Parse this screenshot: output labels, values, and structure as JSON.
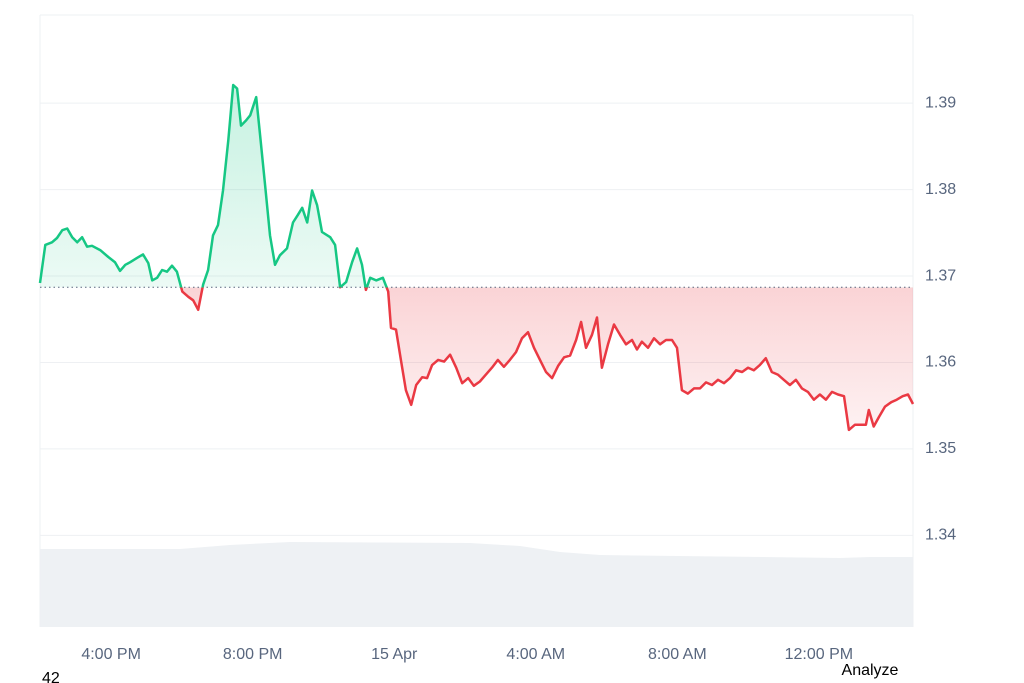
{
  "chart_data": {
    "type": "line",
    "x": [
      13.99,
      14.14,
      14.33,
      14.47,
      14.62,
      14.76,
      14.9,
      15.04,
      15.18,
      15.32,
      15.46,
      15.69,
      15.92,
      16.11,
      16.25,
      16.4,
      16.54,
      16.73,
      16.9,
      17.05,
      17.16,
      17.3,
      17.44,
      17.58,
      17.72,
      17.86,
      18.01,
      18.18,
      18.32,
      18.46,
      18.6,
      18.74,
      18.88,
      19.02,
      19.16,
      19.31,
      19.45,
      19.56,
      19.67,
      19.81,
      19.93,
      20.1,
      20.21,
      20.35,
      20.49,
      20.63,
      20.77,
      20.97,
      21.14,
      21.28,
      21.4,
      21.54,
      21.68,
      21.82,
      21.96,
      22.19,
      22.33,
      22.47,
      22.64,
      22.81,
      22.95,
      23.09,
      23.2,
      23.32,
      23.49,
      23.68,
      23.83,
      23.91,
      24.05,
      24.19,
      24.33,
      24.48,
      24.62,
      24.79,
      24.93,
      25.07,
      25.24,
      25.41,
      25.58,
      25.75,
      25.92,
      26.09,
      26.25,
      26.42,
      26.59,
      26.76,
      26.93,
      27.1,
      27.27,
      27.44,
      27.61,
      27.78,
      27.95,
      28.12,
      28.29,
      28.46,
      28.63,
      28.8,
      28.97,
      29.14,
      29.28,
      29.42,
      29.59,
      29.73,
      29.87,
      30.04,
      30.21,
      30.38,
      30.55,
      30.72,
      30.86,
      31.0,
      31.17,
      31.34,
      31.51,
      31.68,
      31.85,
      31.99,
      32.13,
      32.3,
      32.47,
      32.64,
      32.81,
      32.98,
      33.15,
      33.32,
      33.49,
      33.66,
      33.83,
      34.0,
      34.16,
      34.33,
      34.5,
      34.67,
      34.84,
      35.01,
      35.18,
      35.35,
      35.52,
      35.69,
      35.86,
      36.03,
      36.2,
      36.37,
      36.54,
      36.71,
      36.85,
      37.02,
      37.19,
      37.33,
      37.41,
      37.55,
      37.7,
      37.87,
      38.04,
      38.2,
      38.37,
      38.52,
      38.66
    ],
    "values": [
      1.3692,
      1.3736,
      1.3739,
      1.3744,
      1.3753,
      1.3755,
      1.3745,
      1.3739,
      1.3745,
      1.3734,
      1.3735,
      1.373,
      1.3722,
      1.3716,
      1.3706,
      1.3713,
      1.3716,
      1.3721,
      1.3725,
      1.3715,
      1.3695,
      1.3698,
      1.3707,
      1.3705,
      1.3712,
      1.3705,
      1.3682,
      1.3676,
      1.3672,
      1.3661,
      1.369,
      1.3707,
      1.3747,
      1.3759,
      1.3799,
      1.3857,
      1.3921,
      1.3917,
      1.3874,
      1.388,
      1.3886,
      1.3907,
      1.3863,
      1.3805,
      1.3747,
      1.3713,
      1.3724,
      1.3732,
      1.3762,
      1.3771,
      1.3779,
      1.3762,
      1.3799,
      1.3782,
      1.3751,
      1.3745,
      1.3736,
      1.3687,
      1.3693,
      1.3716,
      1.3732,
      1.3713,
      1.3684,
      1.3698,
      1.3695,
      1.3698,
      1.3682,
      1.364,
      1.3638,
      1.3603,
      1.3568,
      1.3551,
      1.3574,
      1.3583,
      1.3582,
      1.3597,
      1.3603,
      1.3601,
      1.3609,
      1.3594,
      1.3576,
      1.3582,
      1.3573,
      1.3578,
      1.3586,
      1.3594,
      1.3603,
      1.3595,
      1.3603,
      1.3612,
      1.3628,
      1.3635,
      1.3617,
      1.3603,
      1.3589,
      1.3582,
      1.3596,
      1.3606,
      1.3608,
      1.3626,
      1.3647,
      1.3617,
      1.3632,
      1.3652,
      1.3594,
      1.3621,
      1.3644,
      1.3632,
      1.3621,
      1.3626,
      1.3615,
      1.3624,
      1.3617,
      1.3628,
      1.3621,
      1.3626,
      1.3626,
      1.3617,
      1.3568,
      1.3564,
      1.357,
      1.357,
      1.3577,
      1.3574,
      1.358,
      1.3576,
      1.3582,
      1.3591,
      1.3589,
      1.3594,
      1.3591,
      1.3597,
      1.3605,
      1.3589,
      1.3586,
      1.358,
      1.3574,
      1.358,
      1.357,
      1.3566,
      1.3557,
      1.3563,
      1.3557,
      1.3566,
      1.3563,
      1.3561,
      1.3522,
      1.3528,
      1.3528,
      1.3528,
      1.3545,
      1.3526,
      1.3537,
      1.3549,
      1.3554,
      1.3557,
      1.3561,
      1.3563,
      1.3552
    ],
    "baseline": 1.3687,
    "up_color": "#16c784",
    "down_color": "#ea3943",
    "xlim": [
      13.99,
      38.66
    ],
    "xticks": [
      {
        "value": 16,
        "label": "4:00 PM"
      },
      {
        "value": 20,
        "label": "8:00 PM"
      },
      {
        "value": 24,
        "label": "15 Apr"
      },
      {
        "value": 28,
        "label": "4:00 AM"
      },
      {
        "value": 32,
        "label": "8:00 AM"
      },
      {
        "value": 36,
        "label": "12:00 PM"
      }
    ],
    "ylim": [
      1.3294,
      1.4002
    ],
    "yticks": [
      1.34,
      1.35,
      1.36,
      1.37,
      1.38,
      1.39
    ],
    "grid": true
  },
  "footer": {
    "left": "42",
    "right": "Analyze"
  }
}
